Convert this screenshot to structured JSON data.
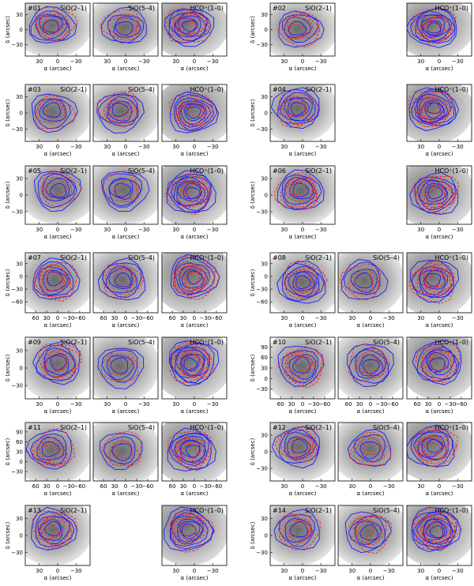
{
  "figure": {
    "description_labels": {
      "x_axis_label": "α (arcsec)",
      "y_axis_label": "δ (arcsec)"
    },
    "colors": {
      "blue_contour": "#1a1aff",
      "red_contour": "#ff1a1a",
      "background_max": "#6a6a6a"
    },
    "rows": [
      {
        "sources": [
          {
            "id": "#01",
            "lines": [
              "SiO(2–1)",
              "SiO(5–4)",
              "HCO⁺(1–0)"
            ],
            "present": [
              true,
              true,
              true
            ],
            "xticks": [
              "30",
              "0",
              "−30"
            ],
            "yticks": [
              "30",
              "0",
              "−30"
            ]
          },
          {
            "id": "#02",
            "lines": [
              "SiO(2–1)",
              "",
              "HCO⁺(1–0)"
            ],
            "present": [
              true,
              false,
              true
            ],
            "xticks": [
              "30",
              "0",
              "−30"
            ],
            "yticks": [
              "30",
              "0",
              "−30"
            ]
          }
        ]
      },
      {
        "sources": [
          {
            "id": "#03",
            "lines": [
              "SiO(2–1)",
              "SiO(5–4)",
              "HCO⁺(1–0)"
            ],
            "present": [
              true,
              true,
              true
            ],
            "xticks": [
              "30",
              "0",
              "−30"
            ],
            "yticks": [
              "30",
              "0",
              "−30"
            ]
          },
          {
            "id": "#04",
            "lines": [
              "SiO(2–1)",
              "",
              "HCO⁺(1–0)"
            ],
            "present": [
              true,
              false,
              true
            ],
            "xticks": [
              "30",
              "0",
              "−30"
            ],
            "yticks": [
              "30",
              "0",
              "−30"
            ]
          }
        ]
      },
      {
        "sources": [
          {
            "id": "#05",
            "lines": [
              "SiO(2–1)",
              "SiO(5–4)",
              "HCO⁺(1–0)"
            ],
            "present": [
              true,
              true,
              true
            ],
            "xticks": [
              "30",
              "0",
              "−30"
            ],
            "yticks": [
              "30",
              "0",
              "−30"
            ]
          },
          {
            "id": "#06",
            "lines": [
              "SiO(2–1)",
              "",
              "HCO⁺(1–0)"
            ],
            "present": [
              true,
              false,
              true
            ],
            "xticks": [
              "30",
              "0",
              "−30"
            ],
            "yticks": [
              "30",
              "0",
              "−30"
            ]
          }
        ]
      },
      {
        "sources": [
          {
            "id": "#07",
            "lines": [
              "SiO(2–1)",
              "SiO(5–4)",
              "HCO⁺(1–0)"
            ],
            "present": [
              true,
              true,
              true
            ],
            "xticks": [
              "60",
              "30",
              "0",
              "−30",
              "−60"
            ],
            "yticks": [
              "30",
              "0",
              "−30",
              "−60"
            ]
          },
          {
            "id": "#08",
            "lines": [
              "SiO(2–1)",
              "SiO(5–4)",
              "HCO⁺(1–0)"
            ],
            "present": [
              true,
              true,
              true
            ],
            "xticks": [
              "30",
              "0",
              "−30"
            ],
            "yticks": [
              "30",
              "0",
              "−30",
              "−60"
            ]
          }
        ]
      },
      {
        "sources": [
          {
            "id": "#09",
            "lines": [
              "SiO(2–1)",
              "SiO(5–4)",
              "HCO⁺(1–0)"
            ],
            "present": [
              true,
              true,
              true
            ],
            "xticks": [
              "30",
              "0",
              "−30"
            ],
            "yticks": [
              "30",
              "0",
              "−30"
            ]
          },
          {
            "id": "#10",
            "lines": [
              "SiO(2–1)",
              "SiO(5–4)",
              "HCO⁺(1–0)"
            ],
            "present": [
              true,
              true,
              true
            ],
            "xticks": [
              "60",
              "30",
              "0",
              "−30",
              "−60"
            ],
            "yticks": [
              "90",
              "60",
              "30",
              "0",
              "−30"
            ]
          }
        ]
      },
      {
        "sources": [
          {
            "id": "#11",
            "lines": [
              "SiO(2–1)",
              "SiO(5–4)",
              "HCO⁺(1–0)"
            ],
            "present": [
              true,
              true,
              true
            ],
            "xticks": [
              "60",
              "30",
              "0",
              "−30",
              "−60"
            ],
            "yticks": [
              "90",
              "60",
              "30",
              "0",
              "−30"
            ]
          },
          {
            "id": "#12",
            "lines": [
              "SiO(2–1)",
              "SiO(5–4)",
              "HCO⁺(1–0)"
            ],
            "present": [
              true,
              true,
              true
            ],
            "xticks": [
              "30",
              "0",
              "−30"
            ],
            "yticks": [
              "30",
              "0",
              "−30"
            ]
          }
        ]
      },
      {
        "sources": [
          {
            "id": "#13",
            "lines": [
              "SiO(2–1)",
              "",
              "HCO⁺(1–0)"
            ],
            "present": [
              true,
              false,
              true
            ],
            "xticks": [
              "30",
              "0",
              "−30"
            ],
            "yticks": [
              "30",
              "0",
              "−30"
            ]
          },
          {
            "id": "#14",
            "lines": [
              "SiO(2–1)",
              "SiO(5–4)",
              "HCO⁺(1–0)"
            ],
            "present": [
              true,
              true,
              true
            ],
            "xticks": [
              "30",
              "0",
              "−30"
            ],
            "yticks": [
              "30",
              "0",
              "−30"
            ]
          }
        ]
      }
    ]
  }
}
